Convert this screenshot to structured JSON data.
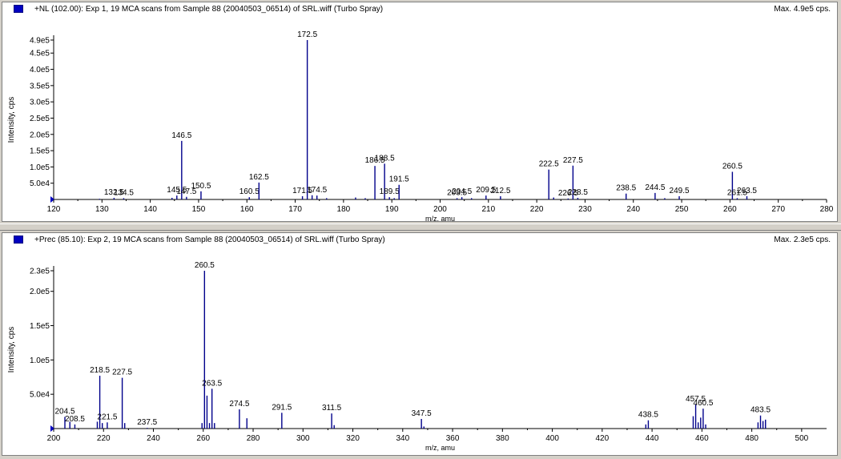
{
  "chart_data": [
    {
      "type": "bar",
      "title": "+NL (102.00): Exp 1, 19 MCA scans from Sample 88 (20040503_06514) of SRL.wiff (Turbo Spray)",
      "max_label": "Max. 4.9e5 cps.",
      "xlabel": "m/z, amu",
      "ylabel": "Intensity, cps",
      "xlim": [
        120,
        280
      ],
      "ylim": [
        0,
        490000
      ],
      "x_ticks": [
        120,
        130,
        140,
        150,
        160,
        170,
        180,
        190,
        200,
        210,
        220,
        230,
        240,
        250,
        260,
        270,
        280
      ],
      "y_ticks": [
        {
          "v": 50000,
          "label": "5.0e4"
        },
        {
          "v": 100000,
          "label": "1.0e5"
        },
        {
          "v": 150000,
          "label": "1.5e5"
        },
        {
          "v": 200000,
          "label": "2.0e5"
        },
        {
          "v": 250000,
          "label": "2.5e5"
        },
        {
          "v": 300000,
          "label": "3.0e5"
        },
        {
          "v": 350000,
          "label": "3.5e5"
        },
        {
          "v": 400000,
          "label": "4.0e5"
        },
        {
          "v": 450000,
          "label": "4.5e5"
        },
        {
          "v": 490000,
          "label": "4.9e5"
        }
      ],
      "color": "#00008b",
      "peaks": [
        {
          "x": 129.5,
          "y": 2000
        },
        {
          "x": 132.5,
          "y": 5000,
          "label": "132.5"
        },
        {
          "x": 134.5,
          "y": 4000,
          "label": "134.5"
        },
        {
          "x": 144.5,
          "y": 5000
        },
        {
          "x": 145.5,
          "y": 12000,
          "label": "145.5"
        },
        {
          "x": 146.5,
          "y": 180000,
          "label": "146.5"
        },
        {
          "x": 147.5,
          "y": 8000,
          "label": "147.5"
        },
        {
          "x": 150.5,
          "y": 25000,
          "label": "150.5"
        },
        {
          "x": 160.5,
          "y": 7000,
          "label": "160.5"
        },
        {
          "x": 162.5,
          "y": 52000,
          "label": "162.5"
        },
        {
          "x": 171.5,
          "y": 10000,
          "label": "171.5"
        },
        {
          "x": 172.5,
          "y": 490000,
          "label": "172.5"
        },
        {
          "x": 173.5,
          "y": 13000
        },
        {
          "x": 174.5,
          "y": 12000,
          "label": "174.5"
        },
        {
          "x": 176.5,
          "y": 4000
        },
        {
          "x": 182.5,
          "y": 6000
        },
        {
          "x": 184.5,
          "y": 4000
        },
        {
          "x": 186.5,
          "y": 103000,
          "label": "186.5"
        },
        {
          "x": 188.5,
          "y": 110000,
          "label": "188.5"
        },
        {
          "x": 189.5,
          "y": 7000,
          "label": "189.5"
        },
        {
          "x": 190.5,
          "y": 4000
        },
        {
          "x": 191.5,
          "y": 45000,
          "label": "191.5"
        },
        {
          "x": 203.5,
          "y": 4000,
          "label": "203.5"
        },
        {
          "x": 204.5,
          "y": 7000,
          "label": "204.5"
        },
        {
          "x": 206.5,
          "y": 4000
        },
        {
          "x": 209.5,
          "y": 12000,
          "label": "209.5"
        },
        {
          "x": 212.5,
          "y": 10000,
          "label": "212.5"
        },
        {
          "x": 222.5,
          "y": 92000,
          "label": "222.5"
        },
        {
          "x": 223.5,
          "y": 6000
        },
        {
          "x": 226.5,
          "y": 3000,
          "label": "226.5"
        },
        {
          "x": 227.5,
          "y": 104000,
          "label": "227.5"
        },
        {
          "x": 228.5,
          "y": 5000,
          "label": "228.5"
        },
        {
          "x": 238.5,
          "y": 18000,
          "label": "238.5"
        },
        {
          "x": 244.5,
          "y": 20000,
          "label": "244.5"
        },
        {
          "x": 246.5,
          "y": 4000
        },
        {
          "x": 249.5,
          "y": 10000,
          "label": "249.5"
        },
        {
          "x": 260.5,
          "y": 85000,
          "label": "260.5"
        },
        {
          "x": 261.5,
          "y": 4000,
          "label": "261.5"
        },
        {
          "x": 263.5,
          "y": 10000,
          "label": "263.5"
        }
      ]
    },
    {
      "type": "bar",
      "title": "+Prec (85.10): Exp 2, 19 MCA scans from Sample 88 (20040503_06514) of SRL.wiff (Turbo Spray)",
      "max_label": "Max. 2.3e5 cps.",
      "xlabel": "m/z, amu",
      "ylabel": "Intensity, cps",
      "xlim": [
        200,
        510
      ],
      "ylim": [
        0,
        230000
      ],
      "x_ticks": [
        200,
        220,
        240,
        260,
        280,
        300,
        320,
        340,
        360,
        380,
        400,
        420,
        440,
        460,
        480,
        500
      ],
      "y_ticks": [
        {
          "v": 50000,
          "label": "5.0e4"
        },
        {
          "v": 100000,
          "label": "1.0e5"
        },
        {
          "v": 150000,
          "label": "1.5e5"
        },
        {
          "v": 200000,
          "label": "2.0e5"
        },
        {
          "v": 230000,
          "label": "2.3e5"
        }
      ],
      "color": "#00008b",
      "peaks": [
        {
          "x": 204.5,
          "y": 17000,
          "label": "204.5"
        },
        {
          "x": 206.5,
          "y": 10000
        },
        {
          "x": 208.5,
          "y": 6000,
          "label": "208.5"
        },
        {
          "x": 217.5,
          "y": 10000
        },
        {
          "x": 218.5,
          "y": 77000,
          "label": "218.5"
        },
        {
          "x": 219.5,
          "y": 8000
        },
        {
          "x": 221.5,
          "y": 9000,
          "label": "221.5"
        },
        {
          "x": 227.5,
          "y": 74000,
          "label": "227.5"
        },
        {
          "x": 228.5,
          "y": 8000
        },
        {
          "x": 237.5,
          "y": 1000,
          "label": "237.5"
        },
        {
          "x": 259.5,
          "y": 8000
        },
        {
          "x": 260.5,
          "y": 230000,
          "label": "260.5"
        },
        {
          "x": 261.5,
          "y": 48000
        },
        {
          "x": 262.5,
          "y": 8000
        },
        {
          "x": 263.5,
          "y": 58000,
          "label": "263.5"
        },
        {
          "x": 264.5,
          "y": 8000
        },
        {
          "x": 274.5,
          "y": 28000,
          "label": "274.5"
        },
        {
          "x": 277.5,
          "y": 15000
        },
        {
          "x": 291.5,
          "y": 23000,
          "label": "291.5"
        },
        {
          "x": 311.5,
          "y": 22000,
          "label": "311.5"
        },
        {
          "x": 312.5,
          "y": 5000
        },
        {
          "x": 347.5,
          "y": 14000,
          "label": "347.5"
        },
        {
          "x": 348.5,
          "y": 3000
        },
        {
          "x": 437.5,
          "y": 6000
        },
        {
          "x": 438.5,
          "y": 12000,
          "label": "438.5"
        },
        {
          "x": 456.5,
          "y": 18000
        },
        {
          "x": 457.5,
          "y": 35000,
          "label": "457.5"
        },
        {
          "x": 458.5,
          "y": 9000
        },
        {
          "x": 459.5,
          "y": 16000
        },
        {
          "x": 460.5,
          "y": 29000,
          "label": "460.5"
        },
        {
          "x": 461.5,
          "y": 6000
        },
        {
          "x": 482.5,
          "y": 9000
        },
        {
          "x": 483.5,
          "y": 19000,
          "label": "483.5"
        },
        {
          "x": 484.5,
          "y": 11000
        },
        {
          "x": 485.5,
          "y": 13000
        }
      ]
    }
  ]
}
